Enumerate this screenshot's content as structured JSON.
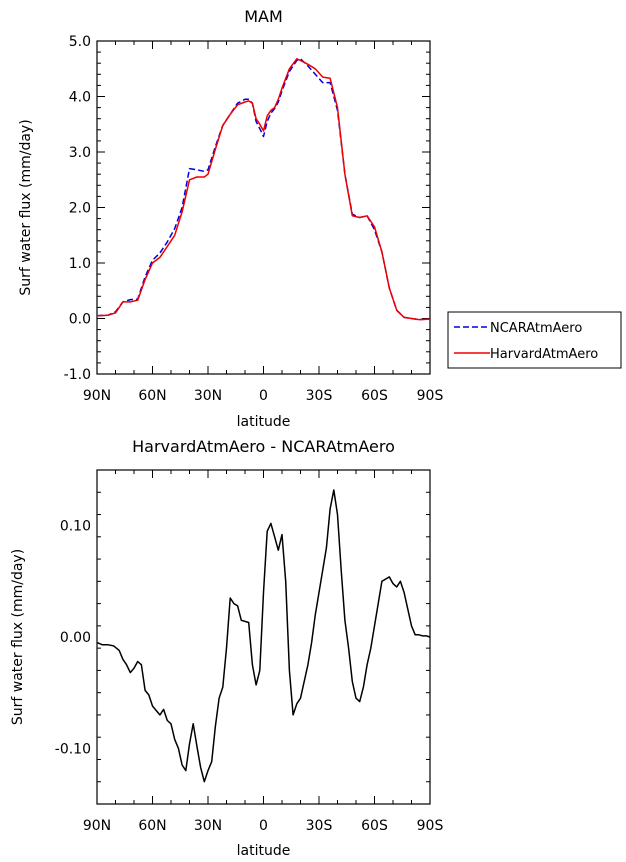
{
  "chart_data": [
    {
      "type": "line",
      "title": "MAM",
      "xlabel": "latitude",
      "ylabel": "Surf water flux (mm/day)",
      "xlim": [
        90,
        -90
      ],
      "ylim": [
        -1.0,
        5.0
      ],
      "xticks": [
        90,
        60,
        30,
        0,
        -30,
        -60,
        -90
      ],
      "xtick_labels": [
        "90N",
        "60N",
        "30N",
        "0",
        "30S",
        "60S",
        "90S"
      ],
      "yticks": [
        -1.0,
        0.0,
        1.0,
        2.0,
        3.0,
        4.0,
        5.0
      ],
      "ytick_labels": [
        "-1.0",
        "0.0",
        "1.0",
        "2.0",
        "3.0",
        "4.0",
        "5.0"
      ],
      "legend_position": "right",
      "series": [
        {
          "name": "NCARAtmAero",
          "color": "#0000dd",
          "dash": "dashed",
          "x": [
            90,
            84,
            80,
            76,
            72,
            68,
            64,
            60,
            56,
            52,
            48,
            44,
            40,
            36,
            32,
            30,
            26,
            22,
            18,
            14,
            10,
            8,
            6,
            4,
            2,
            0,
            -2,
            -4,
            -6,
            -8,
            -10,
            -14,
            -18,
            -20,
            -24,
            -28,
            -32,
            -36,
            -40,
            -44,
            -48,
            -52,
            -56,
            -60,
            -64,
            -68,
            -72,
            -76,
            -80,
            -84,
            -90
          ],
          "y": [
            0.05,
            0.06,
            0.12,
            0.3,
            0.34,
            0.35,
            0.75,
            1.05,
            1.18,
            1.38,
            1.62,
            2.0,
            2.7,
            2.68,
            2.65,
            2.68,
            3.1,
            3.48,
            3.68,
            3.88,
            3.95,
            3.95,
            3.88,
            3.55,
            3.42,
            3.28,
            3.55,
            3.7,
            3.78,
            3.9,
            4.1,
            4.45,
            4.65,
            4.68,
            4.55,
            4.4,
            4.25,
            4.25,
            3.75,
            2.6,
            1.88,
            1.82,
            1.85,
            1.6,
            1.2,
            0.55,
            0.15,
            0.02,
            0.0,
            -0.02,
            -0.01
          ]
        },
        {
          "name": "HarvardAtmAero",
          "color": "#ee0000",
          "dash": "solid",
          "x": [
            90,
            84,
            80,
            76,
            72,
            68,
            64,
            60,
            56,
            52,
            48,
            44,
            40,
            36,
            32,
            30,
            26,
            22,
            18,
            14,
            10,
            8,
            6,
            4,
            2,
            0,
            -2,
            -4,
            -6,
            -8,
            -10,
            -14,
            -18,
            -20,
            -24,
            -28,
            -32,
            -36,
            -40,
            -44,
            -48,
            -52,
            -56,
            -60,
            -64,
            -68,
            -72,
            -76,
            -80,
            -84,
            -90
          ],
          "y": [
            0.05,
            0.06,
            0.1,
            0.3,
            0.3,
            0.33,
            0.7,
            1.0,
            1.1,
            1.3,
            1.5,
            1.92,
            2.5,
            2.55,
            2.55,
            2.6,
            3.05,
            3.48,
            3.68,
            3.85,
            3.9,
            3.92,
            3.88,
            3.6,
            3.5,
            3.38,
            3.65,
            3.75,
            3.8,
            3.95,
            4.15,
            4.5,
            4.68,
            4.65,
            4.58,
            4.5,
            4.35,
            4.33,
            3.8,
            2.6,
            1.85,
            1.82,
            1.85,
            1.65,
            1.2,
            0.55,
            0.15,
            0.02,
            0.0,
            -0.02,
            -0.01
          ]
        }
      ]
    },
    {
      "type": "line",
      "title": "HarvardAtmAero - NCARAtmAero",
      "xlabel": "latitude",
      "ylabel": "Surf water flux (mm/day)",
      "xlim": [
        90,
        -90
      ],
      "ylim": [
        -0.15,
        0.15
      ],
      "xticks": [
        90,
        60,
        30,
        0,
        -30,
        -60,
        -90
      ],
      "xtick_labels": [
        "90N",
        "60N",
        "30N",
        "0",
        "30S",
        "60S",
        "90S"
      ],
      "yticks": [
        -0.1,
        0.0,
        0.1
      ],
      "ytick_labels": [
        "-0.10",
        "0.00",
        "0.10"
      ],
      "series": [
        {
          "name": "",
          "color": "#000000",
          "dash": "solid",
          "x": [
            90,
            87,
            84,
            81,
            78,
            76,
            74,
            72,
            70,
            68,
            66,
            64,
            62,
            60,
            58,
            56,
            54,
            52,
            50,
            48,
            46,
            44,
            42,
            40,
            38,
            36,
            34,
            32,
            30,
            28,
            26,
            24,
            22,
            20,
            18,
            16,
            14,
            12,
            10,
            8,
            6,
            4,
            2,
            0,
            -2,
            -4,
            -6,
            -8,
            -10,
            -12,
            -14,
            -16,
            -18,
            -20,
            -22,
            -24,
            -26,
            -28,
            -30,
            -32,
            -34,
            -36,
            -38,
            -40,
            -42,
            -44,
            -46,
            -48,
            -50,
            -52,
            -54,
            -56,
            -58,
            -60,
            -62,
            -64,
            -66,
            -68,
            -70,
            -72,
            -74,
            -76,
            -78,
            -80,
            -82,
            -84,
            -86,
            -88,
            -90
          ],
          "y": [
            -0.005,
            -0.007,
            -0.007,
            -0.008,
            -0.012,
            -0.02,
            -0.025,
            -0.032,
            -0.028,
            -0.022,
            -0.025,
            -0.048,
            -0.052,
            -0.062,
            -0.066,
            -0.07,
            -0.065,
            -0.075,
            -0.078,
            -0.092,
            -0.1,
            -0.115,
            -0.12,
            -0.096,
            -0.078,
            -0.098,
            -0.117,
            -0.13,
            -0.12,
            -0.112,
            -0.08,
            -0.055,
            -0.045,
            -0.01,
            0.035,
            0.03,
            0.028,
            0.015,
            0.014,
            0.013,
            -0.025,
            -0.043,
            -0.03,
            0.04,
            0.095,
            0.102,
            0.09,
            0.078,
            0.092,
            0.05,
            -0.03,
            -0.07,
            -0.06,
            -0.055,
            -0.04,
            -0.025,
            -0.005,
            0.02,
            0.04,
            0.06,
            0.08,
            0.115,
            0.132,
            0.11,
            0.06,
            0.015,
            -0.01,
            -0.04,
            -0.055,
            -0.058,
            -0.045,
            -0.025,
            -0.01,
            0.01,
            0.03,
            0.05,
            0.052,
            0.054,
            0.048,
            0.045,
            0.05,
            0.04,
            0.025,
            0.01,
            0.002,
            0.002,
            0.001,
            0.001,
            0.0
          ]
        }
      ]
    }
  ]
}
